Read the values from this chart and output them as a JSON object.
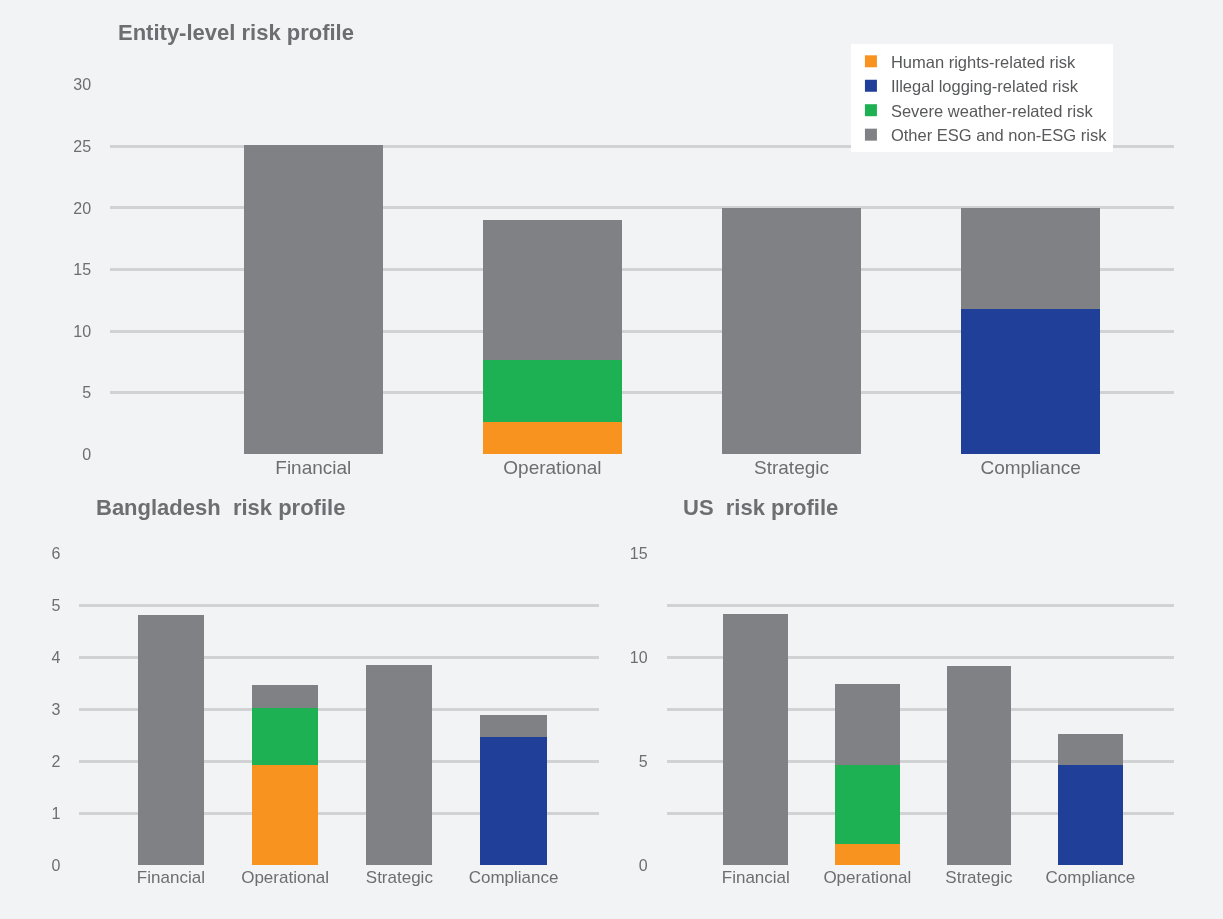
{
  "chart_data": [
    {
      "type": "bar",
      "title": "Entity-level risk profile",
      "stacked": true,
      "categories": [
        "Financial",
        "Operational",
        "Strategic",
        "Compliance"
      ],
      "ylim": [
        0,
        30
      ],
      "yticks": [
        0,
        5,
        10,
        15,
        20,
        25,
        30
      ],
      "grid": "y",
      "legend": "top right",
      "series": [
        {
          "name": "Human rights-related risk",
          "color": "#f7931e",
          "values": [
            null,
            2.6,
            null,
            null
          ]
        },
        {
          "name": "Illegal logging-related risk",
          "color": "#1f3f99",
          "values": [
            null,
            null,
            null,
            11.8
          ]
        },
        {
          "name": "Severe weather-related risk",
          "color": "#1db154",
          "values": [
            null,
            5.1,
            null,
            null
          ]
        },
        {
          "name": "Other ESG and non-ESG risk",
          "color": "#808184",
          "values": [
            25.1,
            11.3,
            20.0,
            8.2
          ]
        }
      ]
    },
    {
      "type": "bar",
      "title": "Bangladesh  risk profile",
      "stacked": true,
      "categories": [
        "Financial",
        "Operational",
        "Strategic",
        "Compliance"
      ],
      "ylim": [
        0,
        6
      ],
      "yticks": [
        0,
        1,
        2,
        3,
        4,
        5,
        6
      ],
      "grid": "y",
      "series": [
        {
          "color": "#f7931e",
          "values": [
            null,
            1.92,
            null,
            null
          ]
        },
        {
          "color": "#1f3f99",
          "values": [
            null,
            null,
            null,
            2.46
          ]
        },
        {
          "color": "#1db154",
          "values": [
            null,
            1.1,
            null,
            null
          ]
        },
        {
          "color": "#808184",
          "values": [
            4.82,
            0.45,
            3.85,
            0.43
          ]
        }
      ]
    },
    {
      "type": "bar",
      "title": "US  risk profile",
      "stacked": true,
      "categories": [
        "Financial",
        "Operational",
        "Strategic",
        "Compliance"
      ],
      "ylim": [
        0,
        15
      ],
      "yticks": [
        0,
        {
          "value": 2.5,
          "label": null
        },
        5,
        {
          "value": 7.5,
          "label": null
        },
        10,
        {
          "value": 12.5,
          "label": null
        },
        15
      ],
      "grid": "y",
      "series": [
        {
          "color": "#f7931e",
          "values": [
            null,
            1.0,
            null,
            null
          ]
        },
        {
          "color": "#1f3f99",
          "values": [
            null,
            null,
            null,
            4.8
          ]
        },
        {
          "color": "#1db154",
          "values": [
            null,
            3.8,
            null,
            null
          ]
        },
        {
          "color": "#808184",
          "values": [
            12.1,
            3.9,
            9.6,
            1.5
          ]
        }
      ]
    }
  ]
}
